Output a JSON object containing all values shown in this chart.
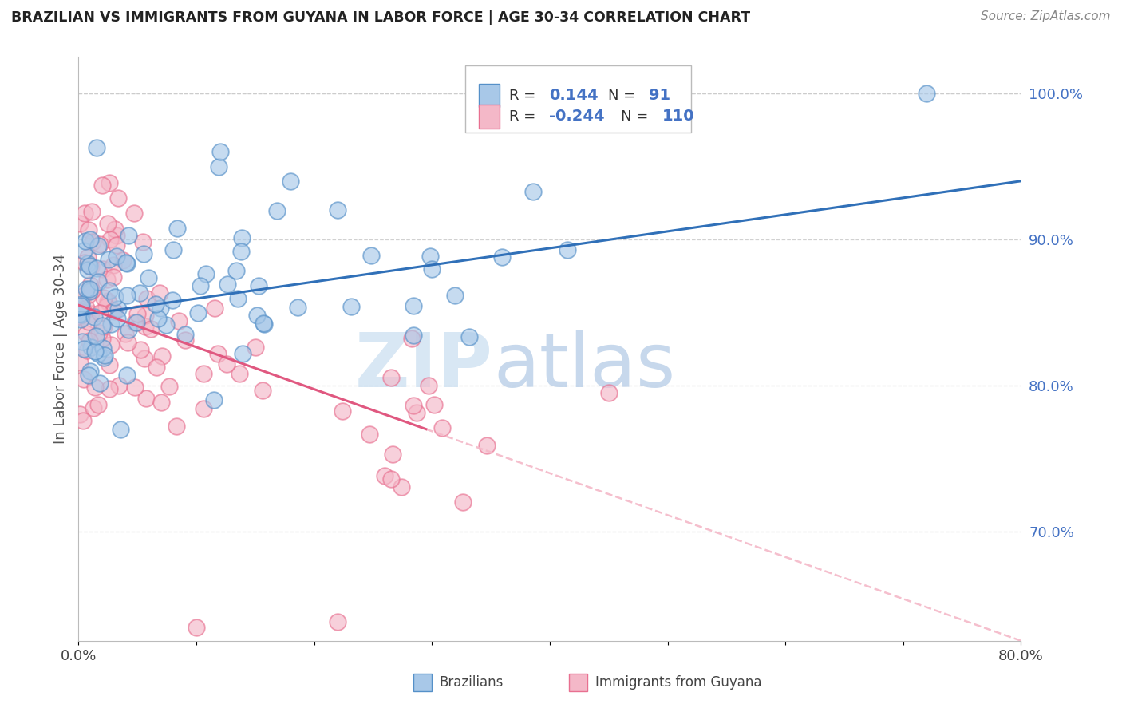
{
  "title": "BRAZILIAN VS IMMIGRANTS FROM GUYANA IN LABOR FORCE | AGE 30-34 CORRELATION CHART",
  "source": "Source: ZipAtlas.com",
  "ylabel": "In Labor Force | Age 30-34",
  "blue_R": 0.144,
  "blue_N": 91,
  "pink_R": -0.244,
  "pink_N": 110,
  "blue_color": "#a8c8e8",
  "pink_color": "#f4b8c8",
  "blue_edge_color": "#5590c8",
  "pink_edge_color": "#e87090",
  "blue_line_color": "#3070b8",
  "pink_line_color": "#e05880",
  "dash_line_color": "#f4b8c8",
  "text_blue": "#4472c4",
  "xmin": 0.0,
  "xmax": 0.8,
  "ymin": 0.625,
  "ymax": 1.025,
  "blue_trend_x": [
    0.0,
    0.8
  ],
  "blue_trend_y": [
    0.848,
    0.94
  ],
  "pink_trend_x": [
    0.0,
    0.295
  ],
  "pink_trend_y": [
    0.855,
    0.77
  ],
  "dash_trend_x": [
    0.295,
    0.8
  ],
  "dash_trend_y": [
    0.77,
    0.625
  ],
  "watermark_zip": "ZIP",
  "watermark_atlas": "atlas",
  "ytick_values": [
    0.7,
    0.8,
    0.9,
    1.0
  ],
  "ytick_labels": [
    "70.0%",
    "80.0%",
    "90.0%",
    "100.0%"
  ],
  "xtick_values": [
    0.0,
    0.1,
    0.2,
    0.3,
    0.4,
    0.5,
    0.6,
    0.7,
    0.8
  ],
  "xtick_labels": [
    "0.0%",
    "",
    "",
    "",
    "",
    "",
    "",
    "",
    "80.0%"
  ]
}
